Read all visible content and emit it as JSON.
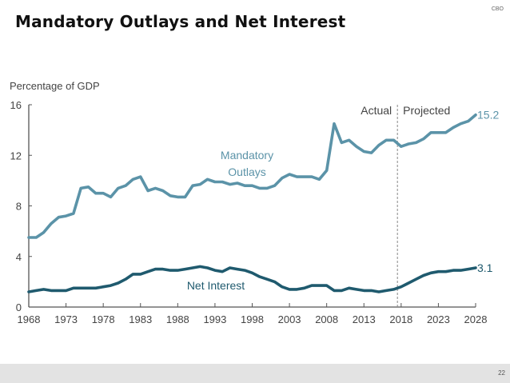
{
  "slide": {
    "title": "Mandatory Outlays and Net Interest",
    "brand": "CBO",
    "page_number": "22"
  },
  "colors": {
    "mandatory": "#5b93a8",
    "net_interest": "#1f5a6e",
    "axis": "#555555",
    "divider": "#888888",
    "footer": "#e3e3e3"
  },
  "chart_data": {
    "type": "line",
    "title": "Mandatory Outlays and Net Interest",
    "ylabel": "Percentage of GDP",
    "xlabel": "",
    "ylim": [
      0,
      16
    ],
    "xlim": [
      1968,
      2028
    ],
    "yticks": [
      0,
      4,
      8,
      12,
      16
    ],
    "xticks": [
      1968,
      1973,
      1978,
      1983,
      1988,
      1993,
      1998,
      2003,
      2008,
      2013,
      2018,
      2023,
      2028
    ],
    "grid": false,
    "divider": {
      "year": 2017.5,
      "left_label": "Actual",
      "right_label": "Projected"
    },
    "x": [
      1968,
      1969,
      1970,
      1971,
      1972,
      1973,
      1974,
      1975,
      1976,
      1977,
      1978,
      1979,
      1980,
      1981,
      1982,
      1983,
      1984,
      1985,
      1986,
      1987,
      1988,
      1989,
      1990,
      1991,
      1992,
      1993,
      1994,
      1995,
      1996,
      1997,
      1998,
      1999,
      2000,
      2001,
      2002,
      2003,
      2004,
      2005,
      2006,
      2007,
      2008,
      2009,
      2010,
      2011,
      2012,
      2013,
      2014,
      2015,
      2016,
      2017,
      2018,
      2019,
      2020,
      2021,
      2022,
      2023,
      2024,
      2025,
      2026,
      2027,
      2028
    ],
    "series": [
      {
        "name": "Mandatory Outlays",
        "label_lines": [
          "Mandatory",
          "Outlays"
        ],
        "end_label": "15.2",
        "values": [
          5.5,
          5.5,
          5.9,
          6.6,
          7.1,
          7.2,
          7.4,
          9.4,
          9.5,
          9.0,
          9.0,
          8.7,
          9.4,
          9.6,
          10.1,
          10.3,
          9.2,
          9.4,
          9.2,
          8.8,
          8.7,
          8.7,
          9.6,
          9.7,
          10.1,
          9.9,
          9.9,
          9.7,
          9.8,
          9.6,
          9.6,
          9.4,
          9.4,
          9.6,
          10.2,
          10.5,
          10.3,
          10.3,
          10.3,
          10.1,
          10.8,
          14.5,
          13.0,
          13.2,
          12.7,
          12.3,
          12.2,
          12.8,
          13.2,
          13.2,
          12.7,
          12.9,
          13.0,
          13.3,
          13.8,
          13.8,
          13.8,
          14.2,
          14.5,
          14.7,
          15.2
        ]
      },
      {
        "name": "Net Interest",
        "label_lines": [
          "Net Interest"
        ],
        "end_label": "3.1",
        "values": [
          1.2,
          1.3,
          1.4,
          1.3,
          1.3,
          1.3,
          1.5,
          1.5,
          1.5,
          1.5,
          1.6,
          1.7,
          1.9,
          2.2,
          2.6,
          2.6,
          2.8,
          3.0,
          3.0,
          2.9,
          2.9,
          3.0,
          3.1,
          3.2,
          3.1,
          2.9,
          2.8,
          3.1,
          3.0,
          2.9,
          2.7,
          2.4,
          2.2,
          2.0,
          1.6,
          1.4,
          1.4,
          1.5,
          1.7,
          1.7,
          1.7,
          1.3,
          1.3,
          1.5,
          1.4,
          1.3,
          1.3,
          1.2,
          1.3,
          1.4,
          1.6,
          1.9,
          2.2,
          2.5,
          2.7,
          2.8,
          2.8,
          2.9,
          2.9,
          3.0,
          3.1
        ]
      }
    ]
  }
}
